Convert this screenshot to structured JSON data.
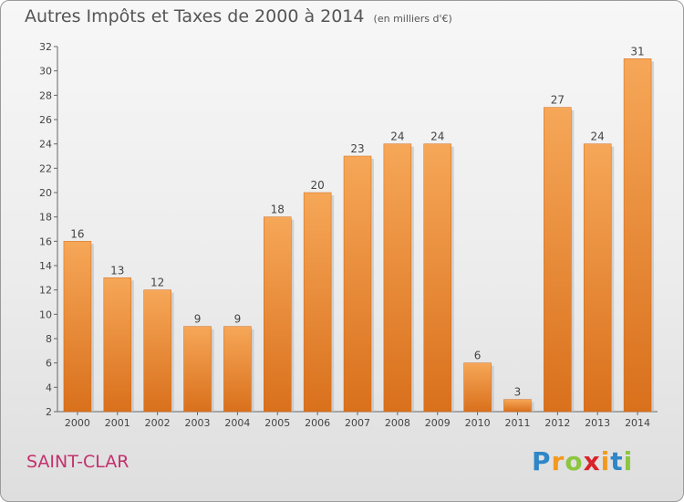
{
  "header": {
    "title": "Autres Impôts et Taxes de 2000 à 2014",
    "subtitle": "(en milliers d'€)"
  },
  "footer": {
    "place": "SAINT-CLAR"
  },
  "logo": {
    "letters": [
      "P",
      "r",
      "o",
      "x",
      "i",
      "t",
      "i"
    ],
    "colors": [
      "#2f86c8",
      "#f29a1f",
      "#8cc63f",
      "#d8232a",
      "#f29a1f",
      "#2f86c8",
      "#8cc63f"
    ]
  },
  "chart_data": {
    "type": "bar",
    "title": "Autres Impôts et Taxes de 2000 à 2014",
    "subtitle": "(en milliers d'€)",
    "categories": [
      "2000",
      "2001",
      "2002",
      "2003",
      "2004",
      "2005",
      "2006",
      "2007",
      "2008",
      "2009",
      "2010",
      "2011",
      "2012",
      "2013",
      "2014"
    ],
    "values": [
      16,
      13,
      12,
      9,
      9,
      18,
      20,
      23,
      24,
      24,
      6,
      3,
      27,
      24,
      31
    ],
    "ylim": [
      2,
      32
    ],
    "yticks": [
      2,
      4,
      6,
      8,
      10,
      12,
      14,
      16,
      18,
      20,
      22,
      24,
      26,
      28,
      30,
      32
    ],
    "grid": false,
    "bar_color": "#f0923a"
  }
}
